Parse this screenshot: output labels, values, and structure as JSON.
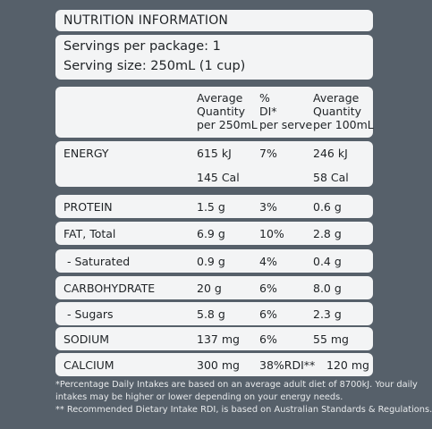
{
  "header": {
    "title": "NUTRITION INFORMATION"
  },
  "servings": {
    "per_package": "Servings per package: 1",
    "serving_size": "Serving size: 250mL (1 cup)"
  },
  "columns": {
    "qty": [
      "Average",
      "Quantity",
      "per 250mL"
    ],
    "di": [
      "%",
      "DI*",
      "per serve"
    ],
    "per100": [
      "Average",
      "Quantity",
      "per 100mL"
    ]
  },
  "rows": [
    {
      "name": "ENERGY",
      "qty": "615 kJ",
      "di": "7%",
      "per100": "246 kJ",
      "qty2": "145 Cal",
      "per100_2": "58 Cal"
    },
    {
      "name": "PROTEIN",
      "qty": "1.5 g",
      "di": "3%",
      "per100": "0.6 g"
    },
    {
      "name": "FAT, Total",
      "qty": "6.9 g",
      "di": "10%",
      "per100": "2.8 g"
    },
    {
      "name": " - Saturated",
      "qty": "0.9 g",
      "di": "4%",
      "per100": "0.4 g"
    },
    {
      "name": "CARBOHYDRATE",
      "qty": "20 g",
      "di": "6%",
      "per100": "8.0 g"
    },
    {
      "name": " - Sugars",
      "qty": "5.8 g",
      "di": "6%",
      "per100": "2.3 g"
    },
    {
      "name": "SODIUM",
      "qty": "137 mg",
      "di": "6%",
      "per100": "55 mg"
    },
    {
      "name": "CALCIUM",
      "qty": "300 mg",
      "di": "38%RDI**",
      "per100": "120 mg"
    }
  ],
  "footnotes": [
    "*Percentage Daily Intakes are based on an average adult diet of 8700kJ. Your daily",
    "intakes may be higher or lower depending on your energy needs.",
    "** Recommended Dietary Intake RDI, is based on Australian Standards & Regulations."
  ]
}
